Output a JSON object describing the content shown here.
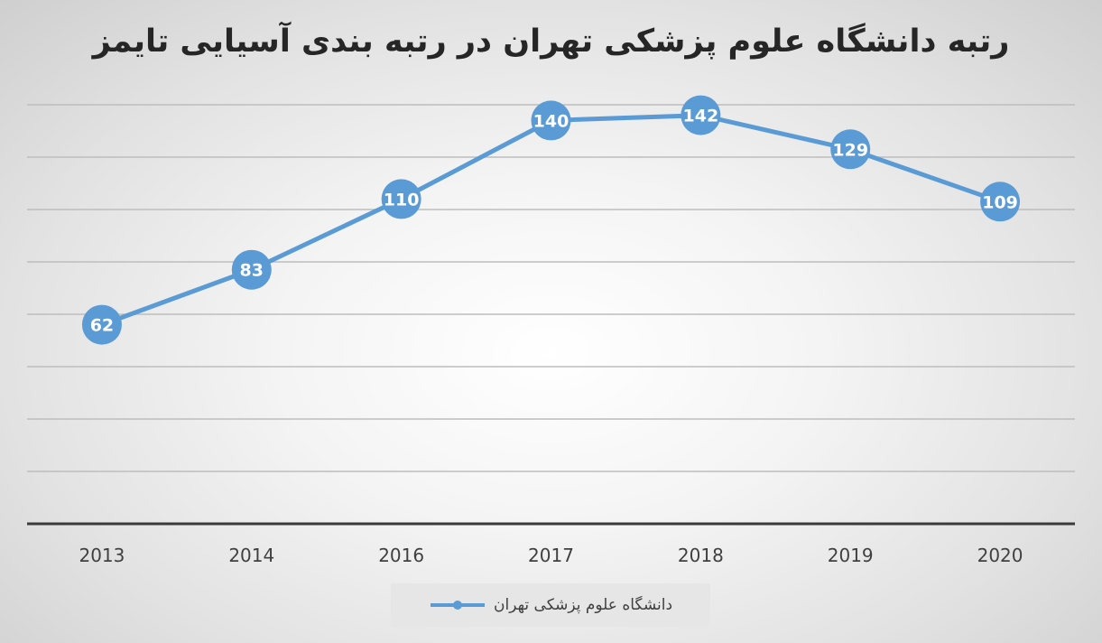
{
  "chart_data": {
    "type": "line",
    "title": "رتبه دانشگاه علوم پزشکی تهران در رتبه بندی آسیایی تایمز",
    "categories": [
      "2013",
      "2014",
      "2016",
      "2017",
      "2018",
      "2019",
      "2020"
    ],
    "series": [
      {
        "name": "دانشگاه علوم پزشکی تهران",
        "values": [
          62,
          83,
          110,
          140,
          142,
          129,
          109
        ],
        "color": "#5b9bd5"
      }
    ],
    "data_labels": true,
    "ylim": [
      -14,
      146
    ],
    "y_gridlines": [
      6,
      26,
      46,
      66,
      86,
      106,
      126,
      146
    ],
    "y_axis_labels_shown": false,
    "grid": true,
    "legend_position": "bottom"
  }
}
